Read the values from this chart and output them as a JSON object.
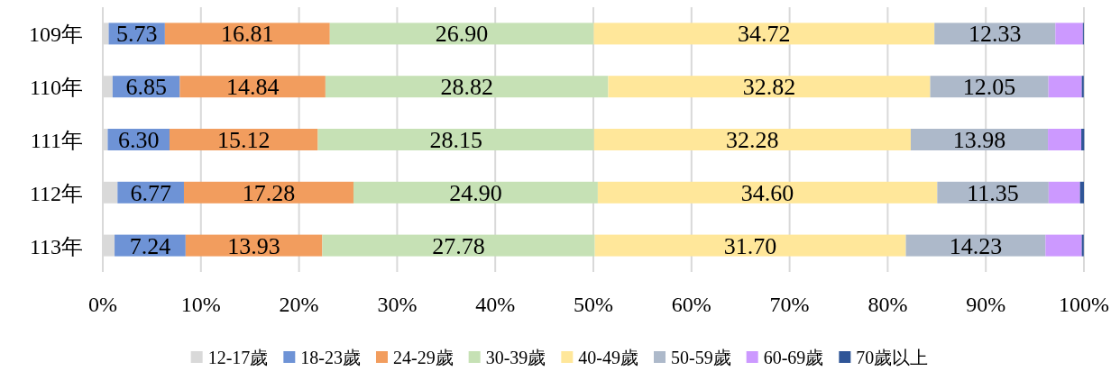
{
  "chart_data": {
    "type": "bar",
    "orientation": "horizontal",
    "stacked": true,
    "categories": [
      "109年",
      "110年",
      "111年",
      "112年",
      "113年"
    ],
    "series": [
      {
        "name": "12-17歲",
        "color": "#d9d9d9",
        "values": [
          0.6,
          1.0,
          0.5,
          1.5,
          1.2
        ]
      },
      {
        "name": "18-23歲",
        "color": "#6e93d6",
        "values": [
          5.73,
          6.85,
          6.3,
          6.77,
          7.24
        ],
        "value_labels": [
          "5.73",
          "6.85",
          "6.30",
          "6.77",
          "7.24"
        ]
      },
      {
        "name": "24-29歲",
        "color": "#f29d5e",
        "values": [
          16.81,
          14.84,
          15.12,
          17.28,
          13.93
        ],
        "value_labels": [
          "16.81",
          "14.84",
          "15.12",
          "17.28",
          "13.93"
        ]
      },
      {
        "name": "30-39歲",
        "color": "#c6e1b5",
        "values": [
          26.9,
          28.82,
          28.15,
          24.9,
          27.78
        ],
        "value_labels": [
          "26.90",
          "28.82",
          "28.15",
          "24.90",
          "27.78"
        ]
      },
      {
        "name": "40-49歲",
        "color": "#ffe79a",
        "values": [
          34.72,
          32.82,
          32.28,
          34.6,
          31.7
        ],
        "value_labels": [
          "34.72",
          "32.82",
          "32.28",
          "34.60",
          "31.70"
        ]
      },
      {
        "name": "50-59歲",
        "color": "#adb9ca",
        "values": [
          12.33,
          12.05,
          13.98,
          11.35,
          14.23
        ],
        "value_labels": [
          "12.33",
          "12.05",
          "13.98",
          "11.35",
          "14.23"
        ]
      },
      {
        "name": "60-69歲",
        "color": "#cc99ff",
        "values": [
          2.8,
          3.4,
          3.4,
          3.2,
          3.7
        ]
      },
      {
        "name": "70歲以上",
        "color": "#2f5597",
        "values": [
          0.1,
          0.2,
          0.3,
          0.4,
          0.2
        ]
      }
    ],
    "xlim": [
      0,
      100
    ],
    "xticks": [
      {
        "value": 0,
        "label": "0%"
      },
      {
        "value": 10,
        "label": "10%"
      },
      {
        "value": 20,
        "label": "20%"
      },
      {
        "value": 30,
        "label": "30%"
      },
      {
        "value": 40,
        "label": "40%"
      },
      {
        "value": 50,
        "label": "50%"
      },
      {
        "value": 60,
        "label": "60%"
      },
      {
        "value": 70,
        "label": "70%"
      },
      {
        "value": 80,
        "label": "80%"
      },
      {
        "value": 90,
        "label": "90%"
      },
      {
        "value": 100,
        "label": "100%"
      }
    ],
    "grid": "x",
    "legend": "bottom"
  }
}
